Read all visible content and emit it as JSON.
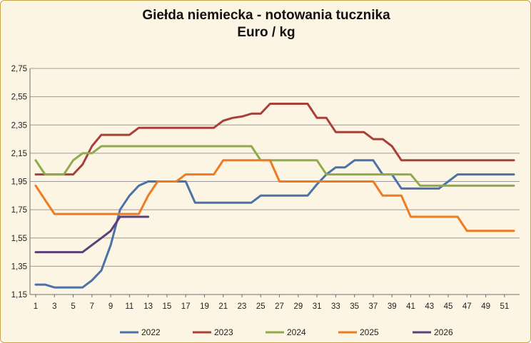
{
  "title_line1": "Giełda niemiecka  - notowania tucznika",
  "title_line2": "Euro  /  kg",
  "chart_data": {
    "type": "line",
    "title": "Giełda niemiecka  - notowania tucznika",
    "subtitle": "Euro  /  kg",
    "xlabel": "",
    "ylabel": "",
    "xlim": [
      1,
      52
    ],
    "ylim": [
      1.15,
      2.75
    ],
    "y_ticks": [
      "2,75",
      "2,55",
      "2,35",
      "2,15",
      "1,95",
      "1,75",
      "1,55",
      "1,35",
      "1,15"
    ],
    "y_tick_values": [
      2.75,
      2.55,
      2.35,
      2.15,
      1.95,
      1.75,
      1.55,
      1.35,
      1.15
    ],
    "x_ticks": [
      "1",
      "3",
      "5",
      "7",
      "9",
      "11",
      "13",
      "15",
      "17",
      "19",
      "21",
      "23",
      "25",
      "27",
      "29",
      "31",
      "33",
      "35",
      "37",
      "39",
      "41",
      "43",
      "45",
      "47",
      "49",
      "51"
    ],
    "x_tick_values": [
      1,
      3,
      5,
      7,
      9,
      11,
      13,
      15,
      17,
      19,
      21,
      23,
      25,
      27,
      29,
      31,
      33,
      35,
      37,
      39,
      41,
      43,
      45,
      47,
      49,
      51
    ],
    "grid": "horizontal",
    "legend_position": "bottom",
    "series": [
      {
        "name": "2022",
        "color": "#4a72a8",
        "x": [
          1,
          2,
          3,
          4,
          5,
          6,
          7,
          8,
          9,
          10,
          11,
          12,
          13,
          14,
          15,
          16,
          17,
          18,
          19,
          20,
          21,
          22,
          23,
          24,
          25,
          26,
          27,
          28,
          29,
          30,
          31,
          32,
          33,
          34,
          35,
          36,
          37,
          38,
          39,
          40,
          41,
          42,
          43,
          44,
          45,
          46,
          47,
          48,
          49,
          50,
          51,
          52
        ],
        "values": [
          1.22,
          1.22,
          1.2,
          1.2,
          1.2,
          1.2,
          1.25,
          1.32,
          1.5,
          1.75,
          1.85,
          1.92,
          1.95,
          1.95,
          1.95,
          1.95,
          1.95,
          1.8,
          1.8,
          1.8,
          1.8,
          1.8,
          1.8,
          1.8,
          1.85,
          1.85,
          1.85,
          1.85,
          1.85,
          1.85,
          1.93,
          2.0,
          2.05,
          2.05,
          2.1,
          2.1,
          2.1,
          2.0,
          2.0,
          1.9,
          1.9,
          1.9,
          1.9,
          1.9,
          1.95,
          2.0,
          2.0,
          2.0,
          2.0,
          2.0,
          2.0,
          2.0
        ]
      },
      {
        "name": "2023",
        "color": "#a8403a",
        "x": [
          1,
          2,
          3,
          4,
          5,
          6,
          7,
          8,
          9,
          10,
          11,
          12,
          13,
          14,
          15,
          16,
          17,
          18,
          19,
          20,
          21,
          22,
          23,
          24,
          25,
          26,
          27,
          28,
          29,
          30,
          31,
          32,
          33,
          34,
          35,
          36,
          37,
          38,
          39,
          40,
          41,
          42,
          43,
          44,
          45,
          46,
          47,
          48,
          49,
          50,
          51,
          52
        ],
        "values": [
          2.0,
          2.0,
          2.0,
          2.0,
          2.0,
          2.07,
          2.2,
          2.28,
          2.28,
          2.28,
          2.28,
          2.33,
          2.33,
          2.33,
          2.33,
          2.33,
          2.33,
          2.33,
          2.33,
          2.33,
          2.38,
          2.4,
          2.41,
          2.43,
          2.43,
          2.5,
          2.5,
          2.5,
          2.5,
          2.5,
          2.4,
          2.4,
          2.3,
          2.3,
          2.3,
          2.3,
          2.25,
          2.25,
          2.2,
          2.1,
          2.1,
          2.1,
          2.1,
          2.1,
          2.1,
          2.1,
          2.1,
          2.1,
          2.1,
          2.1,
          2.1,
          2.1
        ]
      },
      {
        "name": "2024",
        "color": "#8eaa4a",
        "x": [
          1,
          2,
          3,
          4,
          5,
          6,
          7,
          8,
          9,
          10,
          11,
          12,
          13,
          14,
          15,
          16,
          17,
          18,
          19,
          20,
          21,
          22,
          23,
          24,
          25,
          26,
          27,
          28,
          29,
          30,
          31,
          32,
          33,
          34,
          35,
          36,
          37,
          38,
          39,
          40,
          41,
          42,
          43,
          44,
          45,
          46,
          47,
          48,
          49,
          50,
          51,
          52
        ],
        "values": [
          2.1,
          2.0,
          2.0,
          2.0,
          2.1,
          2.15,
          2.15,
          2.2,
          2.2,
          2.2,
          2.2,
          2.2,
          2.2,
          2.2,
          2.2,
          2.2,
          2.2,
          2.2,
          2.2,
          2.2,
          2.2,
          2.2,
          2.2,
          2.2,
          2.1,
          2.1,
          2.1,
          2.1,
          2.1,
          2.1,
          2.1,
          2.0,
          2.0,
          2.0,
          2.0,
          2.0,
          2.0,
          2.0,
          2.0,
          2.0,
          2.0,
          1.92,
          1.92,
          1.92,
          1.92,
          1.92,
          1.92,
          1.92,
          1.92,
          1.92,
          1.92,
          1.92
        ]
      },
      {
        "name": "2025",
        "color": "#ee7a22",
        "x": [
          1,
          2,
          3,
          4,
          5,
          6,
          7,
          8,
          9,
          10,
          11,
          12,
          13,
          14,
          15,
          16,
          17,
          18,
          19,
          20,
          21,
          22,
          23,
          24,
          25,
          26,
          27,
          28,
          29,
          30,
          31,
          32,
          33,
          34,
          35,
          36,
          37,
          38,
          39,
          40,
          41,
          42,
          43,
          44,
          45,
          46,
          47,
          48,
          49,
          50,
          51,
          52
        ],
        "values": [
          1.92,
          1.82,
          1.72,
          1.72,
          1.72,
          1.72,
          1.72,
          1.72,
          1.72,
          1.72,
          1.72,
          1.72,
          1.85,
          1.95,
          1.95,
          1.95,
          2.0,
          2.0,
          2.0,
          2.0,
          2.1,
          2.1,
          2.1,
          2.1,
          2.1,
          2.1,
          1.95,
          1.95,
          1.95,
          1.95,
          1.95,
          1.95,
          1.95,
          1.95,
          1.95,
          1.95,
          1.95,
          1.85,
          1.85,
          1.85,
          1.7,
          1.7,
          1.7,
          1.7,
          1.7,
          1.7,
          1.6,
          1.6,
          1.6,
          1.6,
          1.6,
          1.6
        ]
      },
      {
        "name": "2026",
        "color": "#5a3f78",
        "x": [
          1,
          2,
          3,
          4,
          5,
          6,
          7,
          8,
          9,
          10,
          11,
          12,
          13
        ],
        "values": [
          1.45,
          1.45,
          1.45,
          1.45,
          1.45,
          1.45,
          1.5,
          1.55,
          1.6,
          1.7,
          1.7,
          1.7,
          1.7
        ]
      }
    ]
  }
}
